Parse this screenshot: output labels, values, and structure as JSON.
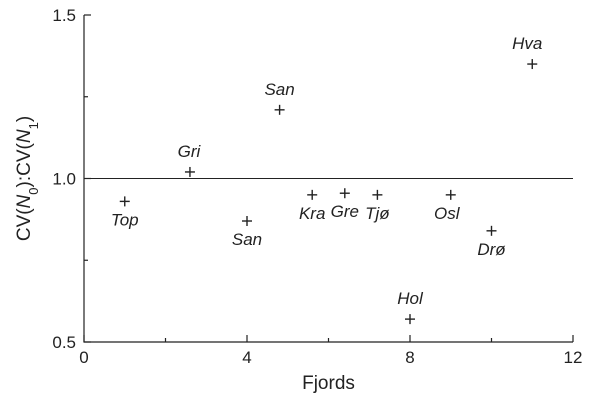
{
  "chart_data": {
    "type": "scatter",
    "title": "",
    "xlabel": "Fjords",
    "ylabel_parts": [
      "CV(",
      "N",
      "0",
      "):CV(",
      "N",
      "1",
      ")"
    ],
    "xlim": [
      0,
      12
    ],
    "ylim": [
      0.5,
      1.5
    ],
    "x_ticks": [
      0,
      4,
      8,
      12
    ],
    "y_ticks": [
      0.5,
      1.0,
      1.5
    ],
    "x_tick_labels": [
      "0",
      "4",
      "8",
      "12"
    ],
    "y_tick_labels": [
      "0.5",
      "1.0",
      "1.5"
    ],
    "reference_line_y": 1.0,
    "grid": false,
    "marker": "+",
    "points": [
      {
        "x": 1,
        "y": 0.93,
        "label": "Top"
      },
      {
        "x": 2.6,
        "y": 1.02,
        "label": "Gri"
      },
      {
        "x": 4,
        "y": 0.87,
        "label": "San"
      },
      {
        "x": 4.8,
        "y": 1.21,
        "label": "San"
      },
      {
        "x": 5.6,
        "y": 0.95,
        "label": "Kra"
      },
      {
        "x": 6.4,
        "y": 0.955,
        "label": "Gre"
      },
      {
        "x": 7.2,
        "y": 0.95,
        "label": "Tjø"
      },
      {
        "x": 8,
        "y": 0.57,
        "label": "Hol"
      },
      {
        "x": 9,
        "y": 0.95,
        "label": "Osl"
      },
      {
        "x": 10,
        "y": 0.84,
        "label": "Drø"
      },
      {
        "x": 11,
        "y": 1.35,
        "label": "Hva"
      }
    ]
  }
}
